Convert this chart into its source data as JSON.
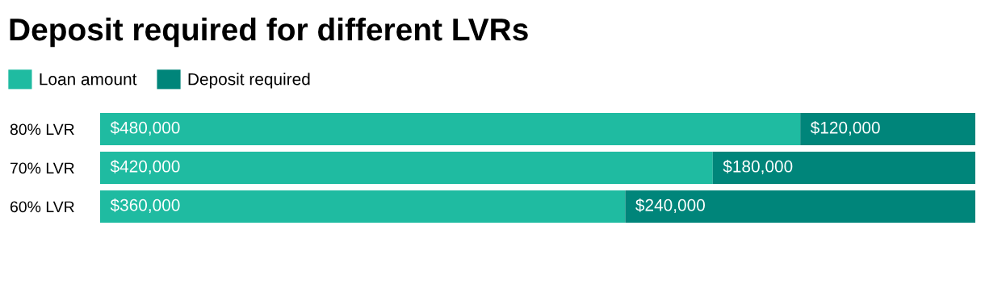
{
  "chart_data": {
    "type": "bar",
    "orientation": "horizontal",
    "stacked": true,
    "title": "Deposit required for different LVRs",
    "categories": [
      "80% LVR",
      "70% LVR",
      "60% LVR"
    ],
    "series": [
      {
        "name": "Loan amount",
        "color": "#1fbba1",
        "values": [
          480000,
          420000,
          360000
        ],
        "value_labels": [
          "$480,000",
          "$420,000",
          "$360,000"
        ]
      },
      {
        "name": "Deposit required",
        "color": "#00857a",
        "values": [
          120000,
          180000,
          240000
        ],
        "value_labels": [
          "$120,000",
          "$180,000",
          "$240,000"
        ]
      }
    ],
    "legend": "top left",
    "grid": false
  }
}
